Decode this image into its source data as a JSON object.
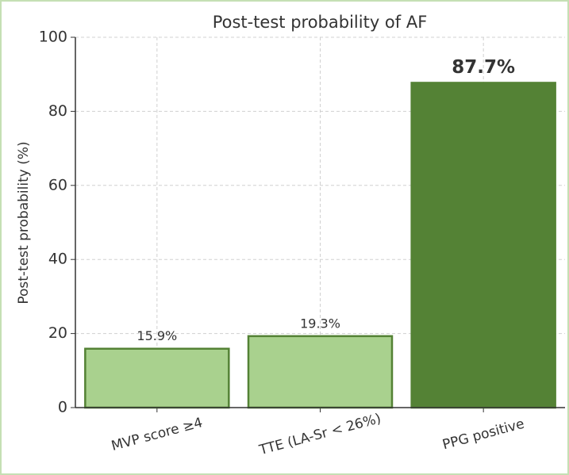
{
  "chart_data": {
    "type": "bar",
    "title": "Post-test probability of AF",
    "ylabel": "Post-test probability (%)",
    "categories": [
      "MVP score ≥4",
      "TTE (LA-Sr < 26%)",
      "PPG positive"
    ],
    "values": [
      15.9,
      19.3,
      87.7
    ],
    "value_labels": [
      "15.9%",
      "19.3%",
      "87.7%"
    ],
    "colors": [
      "#a9d18e",
      "#a9d18e",
      "#548235"
    ],
    "edgecolor": "#548235",
    "value_label_bold": [
      false,
      false,
      true
    ],
    "ylim": [
      0,
      100
    ],
    "yticks": [
      0,
      20,
      40,
      60,
      80,
      100
    ],
    "grid": true
  }
}
